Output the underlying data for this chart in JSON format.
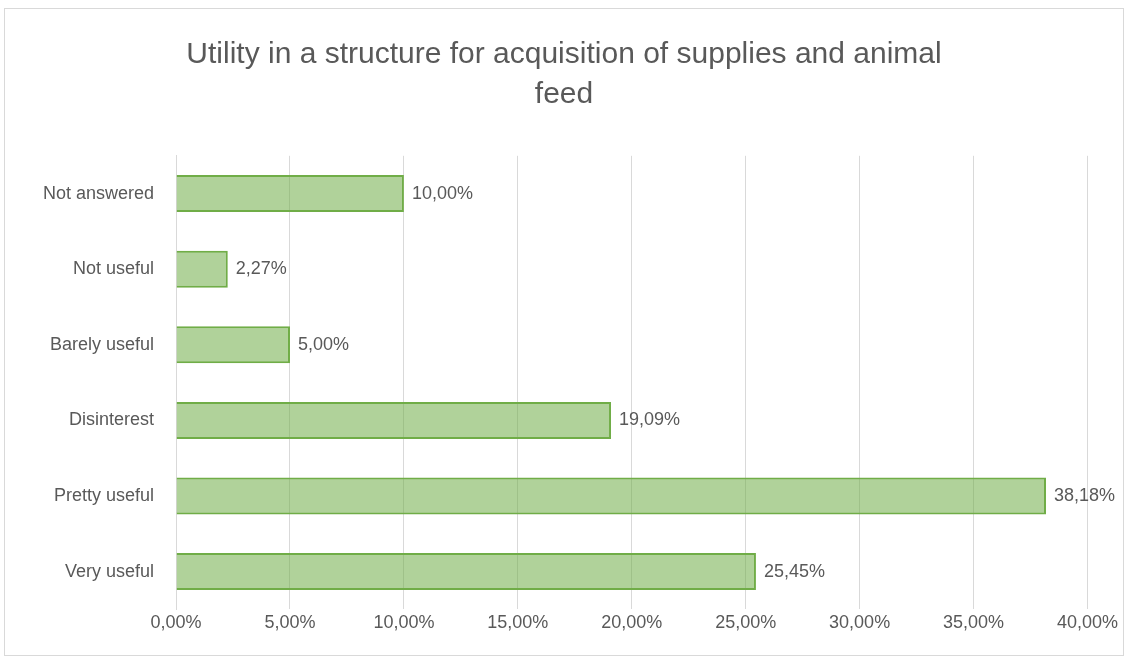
{
  "chart_data": {
    "type": "bar",
    "orientation": "horizontal",
    "title": "Utility in a structure for acquisition of supplies and animal feed",
    "categories": [
      "Not answered",
      "Not useful",
      "Barely useful",
      "Disinterest",
      "Pretty useful",
      "Very useful"
    ],
    "values": [
      10,
      2.27,
      5,
      19.09,
      38.18,
      25.45
    ],
    "value_labels": [
      "10,00%",
      "2,27%",
      "5,00%",
      "19,09%",
      "38,18%",
      "25,45%"
    ],
    "color": "#70ad47",
    "xlim": [
      0,
      40
    ],
    "xticks": [
      {
        "value": 0,
        "label": "0,00%"
      },
      {
        "value": 5,
        "label": "5,00%"
      },
      {
        "value": 10,
        "label": "10,00%"
      },
      {
        "value": 15,
        "label": "15,00%"
      },
      {
        "value": 20,
        "label": "20,00%"
      },
      {
        "value": 25,
        "label": "25,00%"
      },
      {
        "value": 30,
        "label": "30,00%"
      },
      {
        "value": 35,
        "label": "35,00%"
      },
      {
        "value": 40,
        "label": "40,00%"
      }
    ],
    "grid": "x",
    "legend": false
  }
}
